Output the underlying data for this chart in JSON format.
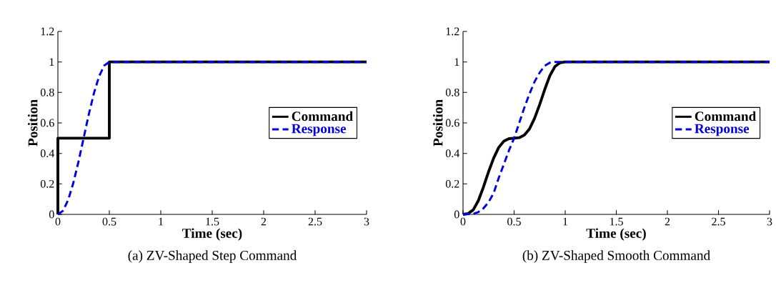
{
  "chart_data": [
    {
      "type": "line",
      "title": "(a)  ZV-Shaped Step Command",
      "xlabel": "Time (sec)",
      "ylabel": "Position",
      "xlim": [
        0,
        3
      ],
      "ylim": [
        0,
        1.2
      ],
      "xticks": [
        0,
        0.5,
        1,
        1.5,
        2,
        2.5,
        3
      ],
      "yticks": [
        0,
        0.2,
        0.4,
        0.6,
        0.8,
        1,
        1.2
      ],
      "legend": "right",
      "series": [
        {
          "name": "Command",
          "color": "#000000",
          "line_style": "solid",
          "x": [
            0,
            0,
            0.5,
            0.5,
            3
          ],
          "values": [
            0,
            0.5,
            0.5,
            1,
            1
          ]
        },
        {
          "name": "Response",
          "color": "#0000dd",
          "line_style": "dashed",
          "x": [
            0,
            0.05,
            0.1,
            0.15,
            0.2,
            0.25,
            0.3,
            0.35,
            0.4,
            0.45,
            0.5,
            3
          ],
          "values": [
            0,
            0.024,
            0.095,
            0.206,
            0.345,
            0.5,
            0.655,
            0.794,
            0.905,
            0.976,
            1,
            1
          ]
        }
      ]
    },
    {
      "type": "line",
      "title": "(b)  ZV-Shaped Smooth Command",
      "xlabel": "Time (sec)",
      "ylabel": "Position",
      "xlim": [
        0,
        3
      ],
      "ylim": [
        0,
        1.2
      ],
      "xticks": [
        0,
        0.5,
        1,
        1.5,
        2,
        2.5,
        3
      ],
      "yticks": [
        0,
        0.2,
        0.4,
        0.6,
        0.8,
        1,
        1.2
      ],
      "legend": "right",
      "series": [
        {
          "name": "Command",
          "color": "#000000",
          "line_style": "solid",
          "x": [
            0,
            0.05,
            0.1,
            0.15,
            0.2,
            0.25,
            0.3,
            0.35,
            0.4,
            0.45,
            0.5,
            0.55,
            0.6,
            0.65,
            0.7,
            0.75,
            0.8,
            0.85,
            0.9,
            0.95,
            1,
            3
          ],
          "values": [
            0,
            0.005,
            0.03,
            0.09,
            0.18,
            0.28,
            0.37,
            0.44,
            0.48,
            0.497,
            0.5,
            0.503,
            0.52,
            0.56,
            0.63,
            0.72,
            0.82,
            0.91,
            0.97,
            0.995,
            1,
            1
          ]
        },
        {
          "name": "Response",
          "color": "#0000dd",
          "line_style": "dashed",
          "x": [
            0,
            0.1,
            0.15,
            0.2,
            0.25,
            0.3,
            0.35,
            0.4,
            0.45,
            0.5,
            0.55,
            0.6,
            0.65,
            0.7,
            0.75,
            0.8,
            0.85,
            0.9,
            3
          ],
          "values": [
            0,
            0.003,
            0.015,
            0.04,
            0.08,
            0.14,
            0.24,
            0.33,
            0.42,
            0.5,
            0.6,
            0.7,
            0.79,
            0.87,
            0.93,
            0.975,
            0.995,
            1,
            1
          ]
        }
      ]
    }
  ]
}
